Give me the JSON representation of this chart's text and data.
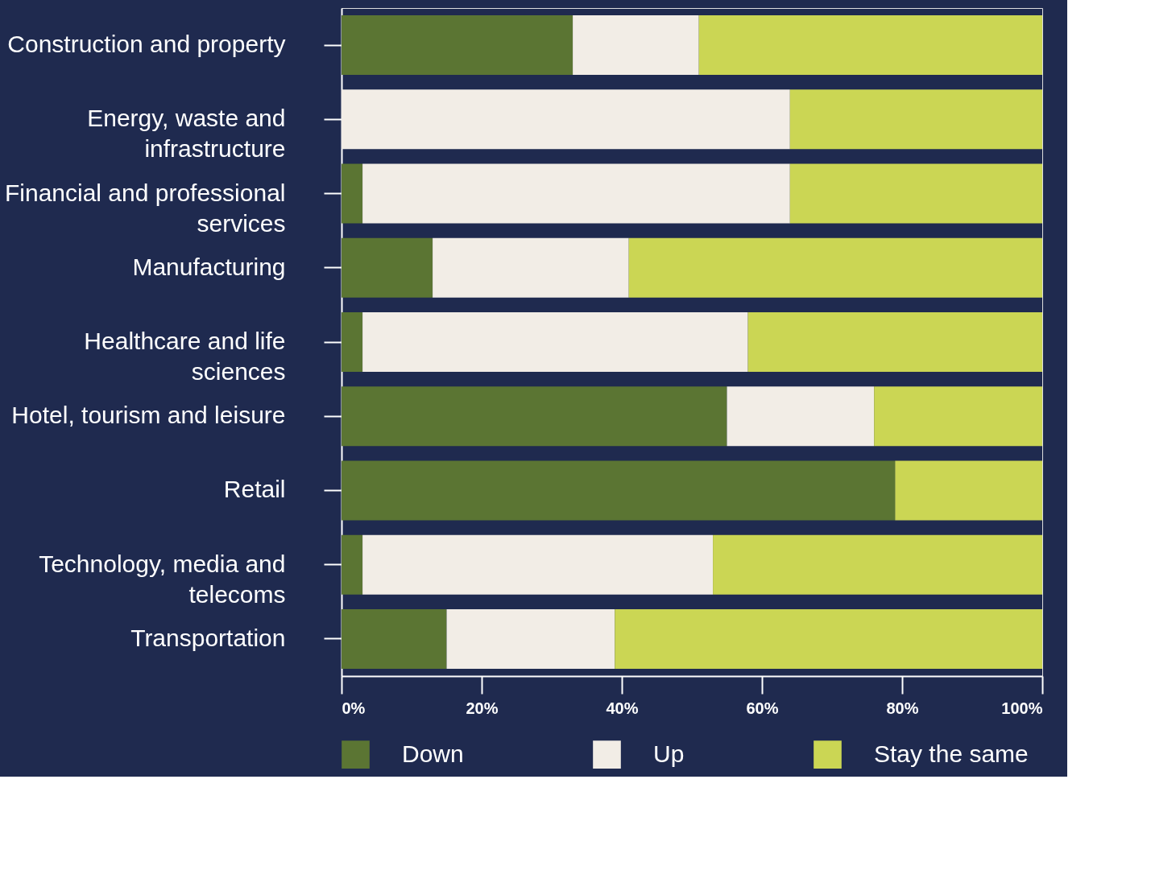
{
  "chart_data": {
    "type": "bar",
    "orientation": "horizontal",
    "stacked": true,
    "categories": [
      "Construction and property",
      "Energy, waste and infrastructure",
      "Financial and professional services",
      "Manufacturing",
      "Healthcare and life sciences",
      "Hotel, tourism and leisure",
      "Retail",
      "Technology, media and telecoms",
      "Transportation"
    ],
    "series": [
      {
        "name": "Down",
        "color": "#5b7533",
        "values": [
          33,
          0,
          3,
          13,
          3,
          55,
          79,
          3,
          15
        ]
      },
      {
        "name": "Up",
        "color": "#f2ede6",
        "values": [
          18,
          64,
          61,
          28,
          55,
          21,
          0,
          50,
          24
        ]
      },
      {
        "name": "Stay the same",
        "color": "#cbd654",
        "values": [
          49,
          36,
          36,
          59,
          42,
          24,
          21,
          47,
          61
        ]
      }
    ],
    "xlim": [
      0,
      100
    ],
    "xticks": [
      {
        "value": 0,
        "label": "0%"
      },
      {
        "value": 20,
        "label": "20%"
      },
      {
        "value": 40,
        "label": "40%"
      },
      {
        "value": 60,
        "label": "60%"
      },
      {
        "value": 80,
        "label": "80%"
      },
      {
        "value": 100,
        "label": "100%"
      }
    ],
    "grid": false,
    "legend": "bottom"
  }
}
